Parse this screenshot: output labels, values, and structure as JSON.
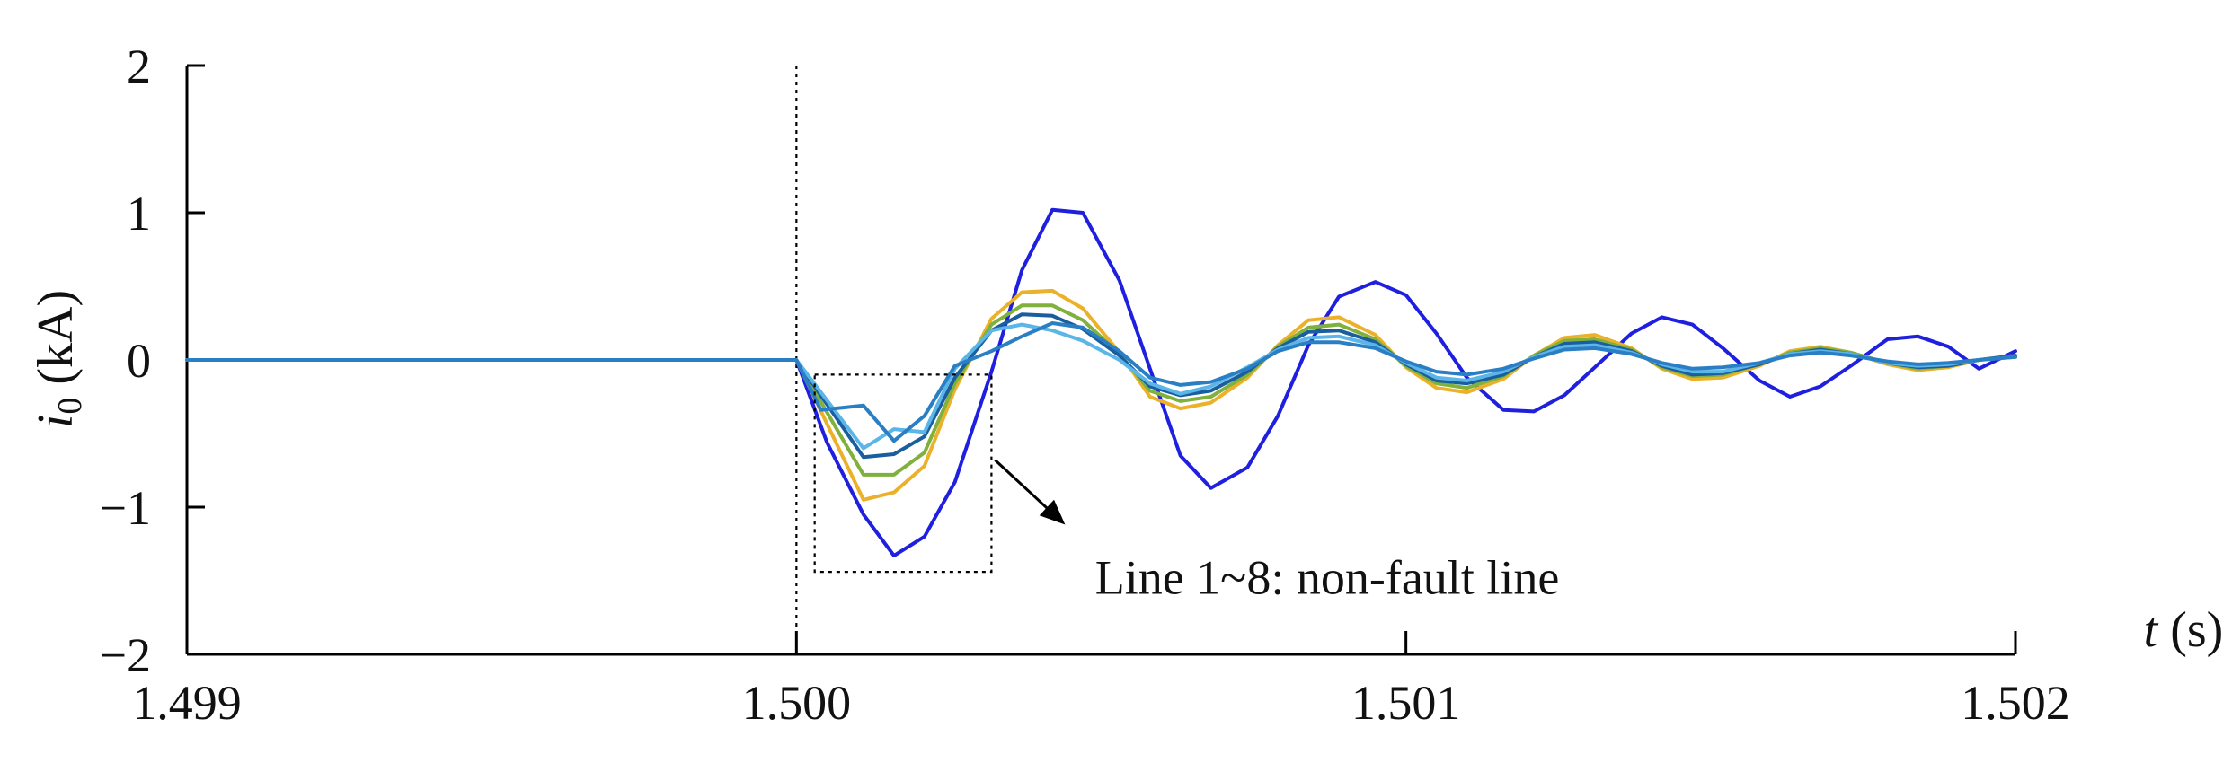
{
  "chart_data": {
    "type": "line",
    "xlabel_var": "t",
    "xlabel_unit": " (s)",
    "ylabel_var": "i",
    "ylabel_sub": "0",
    "ylabel_unit": " (kA)",
    "xlim": [
      1.499,
      1.502
    ],
    "ylim": [
      -2,
      2
    ],
    "xticks": [
      1.499,
      1.5,
      1.501,
      1.502
    ],
    "xtick_labels": [
      "1.499",
      "1.500",
      "1.501",
      "1.502"
    ],
    "yticks": [
      2,
      1,
      0,
      -1,
      -2
    ],
    "ytick_labels": [
      "2",
      "1",
      "0",
      "−1",
      "−2"
    ],
    "grid": false,
    "vline_x": 1.5,
    "annotation": {
      "text": "Line 1~8: non-fault line",
      "box_x": [
        1.50003,
        1.50032
      ],
      "box_y": [
        -1.44,
        -0.1
      ]
    },
    "series": [
      {
        "color": "#1F1FE0",
        "x": [
          1.499,
          1.5,
          1.50005,
          1.50011,
          1.50016,
          1.50021,
          1.50026,
          1.50032,
          1.50037,
          1.50042,
          1.50047,
          1.50053,
          1.50058,
          1.50063,
          1.50068,
          1.50074,
          1.50079,
          1.50084,
          1.50089,
          1.50095,
          1.501,
          1.50105,
          1.5011,
          1.50116,
          1.50121,
          1.50126,
          1.50131,
          1.50137,
          1.50142,
          1.50147,
          1.50152,
          1.50158,
          1.50163,
          1.50168,
          1.50173,
          1.50179,
          1.50184,
          1.50189,
          1.50194,
          1.502
        ],
        "y": [
          0,
          0,
          -0.56,
          -1.05,
          -1.33,
          -1.2,
          -0.83,
          -0.08,
          0.61,
          1.02,
          1.0,
          0.54,
          -0.06,
          -0.65,
          -0.87,
          -0.73,
          -0.38,
          0.1,
          0.43,
          0.53,
          0.44,
          0.18,
          -0.12,
          -0.34,
          -0.35,
          -0.24,
          -0.05,
          0.18,
          0.29,
          0.24,
          0.08,
          -0.14,
          -0.25,
          -0.18,
          -0.04,
          0.14,
          0.16,
          0.09,
          -0.06,
          0.06
        ]
      },
      {
        "color": "#EBB12A",
        "x": [
          1.499,
          1.5,
          1.50011,
          1.50016,
          1.50021,
          1.50026,
          1.50032,
          1.50037,
          1.50042,
          1.50047,
          1.50053,
          1.50058,
          1.50063,
          1.50068,
          1.50074,
          1.50079,
          1.50084,
          1.50089,
          1.50095,
          1.501,
          1.50105,
          1.5011,
          1.50116,
          1.50121,
          1.50126,
          1.50131,
          1.50137,
          1.50142,
          1.50147,
          1.50152,
          1.50158,
          1.50163,
          1.50168,
          1.50173,
          1.50179,
          1.50184,
          1.50189,
          1.50194,
          1.502
        ],
        "y": [
          0,
          0,
          -0.95,
          -0.9,
          -0.72,
          -0.2,
          0.28,
          0.46,
          0.47,
          0.35,
          0.05,
          -0.25,
          -0.33,
          -0.29,
          -0.12,
          0.1,
          0.27,
          0.29,
          0.17,
          -0.05,
          -0.19,
          -0.22,
          -0.13,
          0.03,
          0.15,
          0.17,
          0.08,
          -0.06,
          -0.13,
          -0.12,
          -0.04,
          0.06,
          0.09,
          0.05,
          -0.03,
          -0.07,
          -0.05,
          0.0,
          0.03
        ]
      },
      {
        "color": "#7FB13C",
        "x": [
          1.499,
          1.5,
          1.50011,
          1.50016,
          1.50021,
          1.50026,
          1.50032,
          1.50037,
          1.50042,
          1.50047,
          1.50053,
          1.50058,
          1.50063,
          1.50068,
          1.50074,
          1.50079,
          1.50084,
          1.50089,
          1.50095,
          1.501,
          1.50105,
          1.5011,
          1.50116,
          1.50121,
          1.50126,
          1.50131,
          1.50137,
          1.50142,
          1.50147,
          1.50152,
          1.50158,
          1.50163,
          1.50168,
          1.50173,
          1.50179,
          1.50184,
          1.50189,
          1.50194,
          1.502
        ],
        "y": [
          0,
          0,
          -0.78,
          -0.78,
          -0.63,
          -0.16,
          0.24,
          0.37,
          0.37,
          0.27,
          0.04,
          -0.21,
          -0.28,
          -0.25,
          -0.1,
          0.09,
          0.22,
          0.24,
          0.14,
          -0.04,
          -0.16,
          -0.19,
          -0.11,
          0.03,
          0.13,
          0.14,
          0.07,
          -0.05,
          -0.11,
          -0.1,
          -0.03,
          0.05,
          0.08,
          0.05,
          -0.02,
          -0.06,
          -0.04,
          0.0,
          0.03
        ]
      },
      {
        "color": "#1B5E9E",
        "x": [
          1.499,
          1.5,
          1.50011,
          1.50016,
          1.50021,
          1.50026,
          1.50032,
          1.50037,
          1.50042,
          1.50047,
          1.50053,
          1.50058,
          1.50063,
          1.50068,
          1.50074,
          1.50079,
          1.50084,
          1.50089,
          1.50095,
          1.501,
          1.50105,
          1.5011,
          1.50116,
          1.50121,
          1.50126,
          1.50131,
          1.50137,
          1.50142,
          1.50147,
          1.50152,
          1.50158,
          1.50163,
          1.50168,
          1.50173,
          1.50179,
          1.50184,
          1.50189,
          1.50194,
          1.502
        ],
        "y": [
          0,
          0,
          -0.66,
          -0.64,
          -0.52,
          -0.12,
          0.2,
          0.31,
          0.3,
          0.21,
          0.03,
          -0.18,
          -0.24,
          -0.21,
          -0.08,
          0.08,
          0.19,
          0.2,
          0.12,
          -0.03,
          -0.14,
          -0.16,
          -0.1,
          0.02,
          0.11,
          0.12,
          0.06,
          -0.04,
          -0.1,
          -0.09,
          -0.03,
          0.04,
          0.07,
          0.04,
          -0.02,
          -0.05,
          -0.04,
          0.0,
          0.03
        ]
      },
      {
        "color": "#5BB5E8",
        "x": [
          1.499,
          1.5,
          1.50011,
          1.50016,
          1.50021,
          1.50026,
          1.50032,
          1.50037,
          1.50042,
          1.50047,
          1.50053,
          1.50058,
          1.50063,
          1.50068,
          1.50074,
          1.50079,
          1.50084,
          1.50089,
          1.50095,
          1.501,
          1.50105,
          1.5011,
          1.50116,
          1.50121,
          1.50126,
          1.50131,
          1.50137,
          1.50142,
          1.50147,
          1.50152,
          1.50158,
          1.50163,
          1.50168,
          1.50173,
          1.50179,
          1.50184,
          1.50189,
          1.50194,
          1.502
        ],
        "y": [
          0,
          0,
          -0.6,
          -0.47,
          -0.49,
          -0.06,
          0.2,
          0.24,
          0.2,
          0.13,
          0.0,
          -0.16,
          -0.23,
          -0.18,
          -0.05,
          0.07,
          0.15,
          0.16,
          0.1,
          -0.02,
          -0.12,
          -0.14,
          -0.08,
          0.02,
          0.09,
          0.1,
          0.05,
          -0.03,
          -0.08,
          -0.08,
          -0.02,
          0.04,
          0.06,
          0.04,
          -0.02,
          -0.04,
          -0.03,
          0.0,
          0.02
        ]
      },
      {
        "color": "#2A7FC4",
        "x": [
          1.499,
          1.5,
          1.50004,
          1.50011,
          1.50016,
          1.50021,
          1.50026,
          1.50032,
          1.50037,
          1.50042,
          1.50047,
          1.50053,
          1.50058,
          1.50063,
          1.50068,
          1.50074,
          1.50079,
          1.50084,
          1.50089,
          1.50095,
          1.501,
          1.50105,
          1.5011,
          1.50116,
          1.50121,
          1.50126,
          1.50131,
          1.50137,
          1.50142,
          1.50147,
          1.50152,
          1.50158,
          1.50163,
          1.50168,
          1.50173,
          1.50179,
          1.50184,
          1.50189,
          1.50194,
          1.502
        ],
        "y": [
          0,
          0,
          -0.34,
          -0.31,
          -0.55,
          -0.38,
          -0.04,
          0.06,
          0.16,
          0.25,
          0.22,
          0.06,
          -0.12,
          -0.17,
          -0.15,
          -0.06,
          0.06,
          0.12,
          0.12,
          0.08,
          -0.01,
          -0.08,
          -0.1,
          -0.06,
          0.01,
          0.07,
          0.08,
          0.04,
          -0.02,
          -0.06,
          -0.05,
          -0.02,
          0.03,
          0.05,
          0.03,
          -0.01,
          -0.03,
          -0.02,
          0.0,
          0.02
        ]
      }
    ]
  }
}
